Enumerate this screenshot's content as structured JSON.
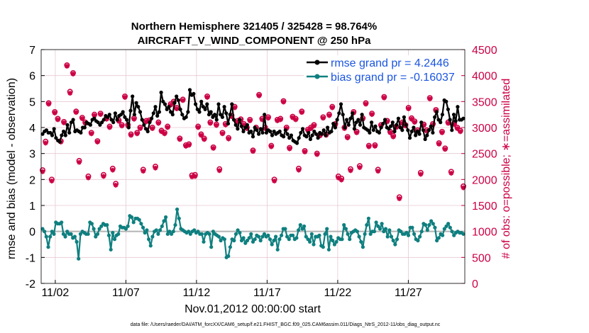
{
  "chart_data": {
    "type": "line",
    "title_line1": "Northern Hemisphere 321405 / 325428 = 98.764%",
    "title_line2": "AIRCRAFT_V_WIND_COMPONENT @ 250 hPa",
    "xlabel": "Nov.01,2012 00:00:00 start",
    "ylabel": "rmse and bias (model - observation)",
    "y2label": "# of obs: o=possible; ∗=assimilated",
    "footnote": "data file: /Users/raeder/DAI/ATM_forcXX/CAM6_setup/f.e21.FHIST_BGC.f09_025.CAM6assim.011/Diags_NtrS_2012-11/obs_diag_output.nc",
    "xlim": [
      0.5,
      30.5
    ],
    "ylim": [
      -2,
      7
    ],
    "y2lim": [
      0,
      4500
    ],
    "x_ticks": [
      1.5,
      6.5,
      11.5,
      16.5,
      21.5,
      26.5
    ],
    "x_tick_labels": [
      "11/02",
      "11/07",
      "11/12",
      "11/17",
      "11/22",
      "11/27"
    ],
    "y_ticks": [
      -2,
      -1,
      0,
      1,
      2,
      3,
      4,
      5,
      6,
      7
    ],
    "y2_ticks": [
      0,
      500,
      1000,
      1500,
      2000,
      2500,
      3000,
      3500,
      4000,
      4500
    ],
    "legend": {
      "location": "top-right",
      "entries": [
        "rmse grand pr = 4.2446",
        "bias grand pr = -0.16037"
      ]
    },
    "colors": {
      "rmse": "#000000",
      "bias": "#0f7f7f",
      "obs": "#cc0044",
      "zero": "#b3b3b3",
      "grid": "#e6c8d2",
      "legend_text": "#1a55e0"
    },
    "rmse": [
      3.75,
      3.85,
      3.9,
      3.8,
      3.8,
      3.7,
      3.95,
      3.6,
      3.5,
      3.45,
      3.7,
      3.85,
      3.7,
      4.1,
      3.8,
      4.2,
      4.3,
      3.85,
      3.9,
      3.85,
      3.8,
      4.0,
      4.0,
      4.2,
      4.15,
      4.1,
      4.3,
      4.35,
      4.25,
      4.2,
      4.1,
      4.2,
      4.3,
      4.45,
      4.4,
      4.5,
      4.3,
      4.2,
      4.55,
      4.3,
      4.45,
      4.5,
      4.6,
      4.4,
      4.3,
      4.0,
      4.65,
      5.2,
      4.5,
      4.95,
      4.8,
      4.6,
      4.3,
      4.1,
      3.95,
      3.85,
      4.2,
      4.35,
      4.55,
      4.8,
      4.45,
      4.6,
      5.35,
      5.0,
      4.9,
      4.7,
      4.8,
      4.6,
      4.5,
      4.95,
      5.2,
      5.05,
      4.7,
      4.5,
      4.35,
      4.4,
      4.6,
      5.45,
      5.25,
      5.3,
      4.9,
      4.7,
      4.6,
      5.0,
      4.8,
      4.7,
      4.9,
      4.5,
      4.6,
      4.4,
      4.5,
      4.3,
      4.9,
      4.5,
      4.4,
      4.8,
      4.55,
      4.15,
      4.5,
      4.9,
      4.3,
      4.1,
      3.95,
      4.3,
      4.05,
      3.85,
      4.0,
      4.1,
      3.8,
      3.85,
      3.65,
      4.0,
      3.9,
      3.75,
      3.95,
      3.8,
      4.5,
      3.8,
      3.9,
      3.85,
      3.7,
      3.85,
      3.75,
      3.8,
      3.85,
      3.7,
      3.65,
      3.9,
      3.75,
      3.6,
      3.7,
      3.5,
      3.45,
      3.4,
      3.6,
      3.8,
      3.95,
      3.7,
      3.65,
      3.8,
      3.55,
      3.7,
      3.85,
      3.75,
      3.6,
      3.8,
      3.75,
      3.9,
      3.7,
      4.0,
      3.8,
      3.85,
      4.15,
      4.0,
      4.3,
      4.55,
      4.9,
      4.5,
      4.0,
      4.3,
      4.1,
      4.35,
      4.55,
      3.95,
      4.2,
      4.3,
      4.1,
      4.5,
      4.0,
      3.95,
      3.9,
      3.8,
      4.2,
      3.9,
      4.05,
      3.85,
      3.8,
      4.0,
      4.15,
      4.3,
      4.0,
      3.95,
      4.05,
      4.2,
      3.85,
      4.1,
      4.35,
      4.0,
      3.9,
      4.4,
      4.1,
      3.9,
      3.6,
      3.85,
      4.0,
      3.7,
      3.85,
      3.75,
      4.2,
      3.9,
      3.55,
      3.7,
      3.9,
      4.05,
      3.8,
      4.4,
      4.6,
      4.3,
      4.2,
      4.5,
      5.05,
      5.0,
      4.7,
      4.3,
      3.9,
      4.5,
      4.25,
      4.8,
      4.3,
      4.3,
      4.35
    ],
    "bias": [
      0.1,
      0.0,
      -0.2,
      -0.6,
      -0.2,
      0.0,
      -0.1,
      0.35,
      0.3,
      0.3,
      0.35,
      -0.1,
      -0.2,
      0.0,
      -0.1,
      -0.1,
      -0.25,
      -0.2,
      -0.4,
      -1.05,
      -0.1,
      0.0,
      -0.05,
      -0.1,
      -0.1,
      0.35,
      0.3,
      0.1,
      -0.2,
      -0.1,
      0.1,
      0.2,
      0.3,
      0.25,
      0.25,
      -0.15,
      -0.7,
      -0.05,
      -0.3,
      -0.15,
      -0.1,
      0.2,
      0.15,
      0.15,
      0.1,
      0.2,
      0.6,
      0.55,
      0.35,
      0.5,
      0.5,
      0.45,
      0.3,
      0.15,
      -0.05,
      0.05,
      -0.3,
      -0.55,
      -0.2,
      0.0,
      0.05,
      -0.1,
      0.05,
      0.2,
      0.4,
      0.55,
      -0.1,
      0.0,
      -0.1,
      0.0,
      0.25,
      0.85,
      0.5,
      0.1,
      0.05,
      0.0,
      -0.05,
      0.0,
      -0.1,
      0.0,
      0.05,
      -0.05,
      0.0,
      -0.1,
      -0.1,
      -0.4,
      -0.1,
      -0.05,
      -0.1,
      -0.6,
      0.0,
      -0.1,
      -0.15,
      -0.2,
      -0.35,
      -0.25,
      -0.3,
      -1.0,
      -0.95,
      -0.6,
      -0.3,
      -0.35,
      -0.1,
      0.05,
      -0.05,
      -0.35,
      -0.25,
      -0.45,
      -0.35,
      -0.25,
      -0.1,
      -0.4,
      -0.3,
      -0.15,
      -0.2,
      -0.35,
      -0.2,
      -0.1,
      -0.2,
      -0.15,
      -0.3,
      -0.5,
      -0.35,
      -0.2,
      -0.7,
      -0.3,
      -0.15,
      0.1,
      0.1,
      -0.2,
      -0.3,
      -0.15,
      -0.15,
      -0.3,
      -0.25,
      0.05,
      0.25,
      0.1,
      0.2,
      -0.2,
      -0.3,
      -0.4,
      -0.1,
      -0.5,
      -0.2,
      -0.2,
      -0.15,
      -0.55,
      -0.6,
      -0.1,
      0.1,
      -0.7,
      -0.2,
      -0.35,
      -0.5,
      -0.4,
      -0.25,
      -0.3,
      -0.3,
      0.25,
      0.1,
      -0.1,
      -0.3,
      -0.05,
      0.0,
      0.05,
      0.0,
      -0.2,
      -0.4,
      -0.6,
      -0.1,
      0.25,
      0.5,
      -0.1,
      0.0,
      0.0,
      0.35,
      0.2,
      0.1,
      0.3,
      0.0,
      0.1,
      -0.2,
      0.05,
      -0.2,
      -0.35,
      -0.5,
      -0.3,
      0.05,
      0.0,
      -0.1,
      -0.1,
      -0.05,
      -0.15,
      0.15,
      0.15,
      -0.1,
      -0.3,
      -0.35,
      -0.2,
      0.0,
      0.3,
      0.25,
      0.05,
      0.25,
      0.4,
      0.3,
      0.15,
      -0.35,
      -0.25,
      -0.1,
      -0.15,
      0.1,
      0.2,
      0.3,
      0.15,
      0.0,
      -0.15,
      -0.05,
      0.0,
      -0.05,
      -0.05,
      -0.1
    ],
    "obs_possible": [
      2180,
      2730,
      3470,
      2000,
      3300,
      3170,
      2740,
      3110,
      4200,
      3690,
      4050,
      3310,
      2360,
      3190,
      3100,
      2060,
      2900,
      3250,
      2740,
      3270,
      2090,
      3180,
      3020,
      2210,
      1920,
      3140,
      3050,
      3600,
      3050,
      2870,
      3180,
      2900,
      3000,
      2190,
      3130,
      3140,
      3000,
      2250,
      3100,
      2940,
      2900,
      3020,
      3450,
      3500,
      3380,
      2790,
      3540,
      2660,
      2680,
      2080,
      2090,
      3020,
      2870,
      2790,
      3600,
      3100,
      2620,
      3060,
      2200,
      2900,
      3070,
      2800,
      3230,
      3400,
      3130,
      3160,
      3070,
      3000,
      3150,
      2560,
      3000,
      3630,
      3170,
      3000,
      3200,
      2650,
      2000,
      3150,
      3170,
      3510,
      3000,
      2610,
      3210,
      3170,
      2210,
      3310,
      2550,
      2960,
      3000,
      3050,
      2500,
      2860,
      3200,
      2870,
      3250,
      3400,
      3070,
      2060,
      2020,
      3000,
      2820,
      2200,
      3300,
      2920,
      2260,
      3180,
      3470,
      2650,
      3270,
      2660,
      2190,
      3050,
      3590,
      3130,
      2920,
      2840,
      3020,
      1660,
      3100,
      3050,
      3380,
      3180,
      3120,
      2950,
      2130,
      3060,
      2950,
      3570,
      3070,
      3340,
      2700,
      2920,
      2600,
      3100,
      2150,
      3080,
      3000,
      2940,
      1870
    ],
    "obs_assimilated": [
      2150,
      2700,
      3450,
      1970,
      3280,
      3150,
      2720,
      3090,
      4180,
      3660,
      4030,
      3290,
      2330,
      3170,
      3080,
      2030,
      2880,
      3230,
      2720,
      3250,
      2060,
      3160,
      3000,
      2180,
      1890,
      3120,
      3030,
      3580,
      3030,
      2850,
      3160,
      2880,
      2980,
      2160,
      3110,
      3120,
      2980,
      2220,
      3080,
      2920,
      2880,
      3000,
      3430,
      3480,
      3360,
      2770,
      3520,
      2640,
      2660,
      2050,
      2060,
      3000,
      2850,
      2770,
      3580,
      3080,
      2600,
      3040,
      2170,
      2880,
      3050,
      2780,
      3210,
      3380,
      3110,
      3140,
      3050,
      2980,
      3130,
      2540,
      2980,
      3610,
      3150,
      2980,
      3180,
      2630,
      1970,
      3130,
      3150,
      3490,
      2980,
      2590,
      3190,
      3150,
      2180,
      3290,
      2530,
      2940,
      2980,
      3030,
      2480,
      2840,
      3180,
      2850,
      3230,
      3380,
      3050,
      2030,
      1990,
      2980,
      2800,
      2170,
      3280,
      2900,
      2230,
      3160,
      3450,
      2630,
      3250,
      2640,
      2160,
      3030,
      3570,
      3110,
      2900,
      2820,
      3000,
      1630,
      3080,
      3030,
      3360,
      3160,
      3100,
      2930,
      2100,
      3040,
      2930,
      3550,
      3050,
      3320,
      2680,
      2900,
      2580,
      3080,
      2120,
      3060,
      2980,
      2920,
      1840
    ]
  }
}
